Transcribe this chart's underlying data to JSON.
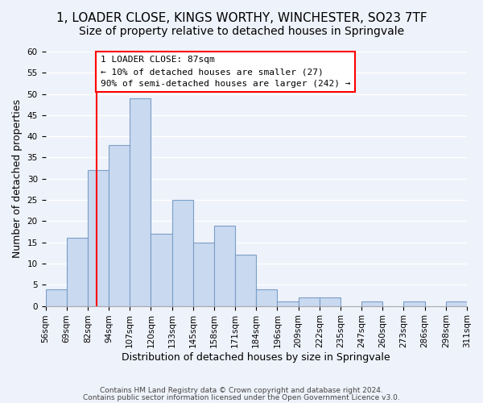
{
  "title": "1, LOADER CLOSE, KINGS WORTHY, WINCHESTER, SO23 7TF",
  "subtitle": "Size of property relative to detached houses in Springvale",
  "xlabel": "Distribution of detached houses by size in Springvale",
  "ylabel": "Number of detached properties",
  "bar_color": "#c9d9f0",
  "bar_edge_color": "#7a9ec8",
  "bins": [
    "56sqm",
    "69sqm",
    "82sqm",
    "94sqm",
    "107sqm",
    "120sqm",
    "133sqm",
    "145sqm",
    "158sqm",
    "171sqm",
    "184sqm",
    "196sqm",
    "209sqm",
    "222sqm",
    "235sqm",
    "247sqm",
    "260sqm",
    "273sqm",
    "286sqm",
    "298sqm",
    "311sqm"
  ],
  "values": [
    4,
    16,
    32,
    38,
    49,
    17,
    25,
    15,
    19,
    12,
    4,
    1,
    2,
    2,
    0,
    1,
    0,
    1,
    0,
    1
  ],
  "ylim": [
    0,
    60
  ],
  "yticks": [
    0,
    5,
    10,
    15,
    20,
    25,
    30,
    35,
    40,
    45,
    50,
    55,
    60
  ],
  "annotation_title": "1 LOADER CLOSE: 87sqm",
  "annotation_line1": "← 10% of detached houses are smaller (27)",
  "annotation_line2": "90% of semi-detached houses are larger (242) →",
  "footer1": "Contains HM Land Registry data © Crown copyright and database right 2024.",
  "footer2": "Contains public sector information licensed under the Open Government Licence v3.0.",
  "background_color": "#eef2fa",
  "grid_color": "#ffffff",
  "title_fontsize": 11,
  "subtitle_fontsize": 10,
  "axis_label_fontsize": 9,
  "tick_fontsize": 7.5
}
